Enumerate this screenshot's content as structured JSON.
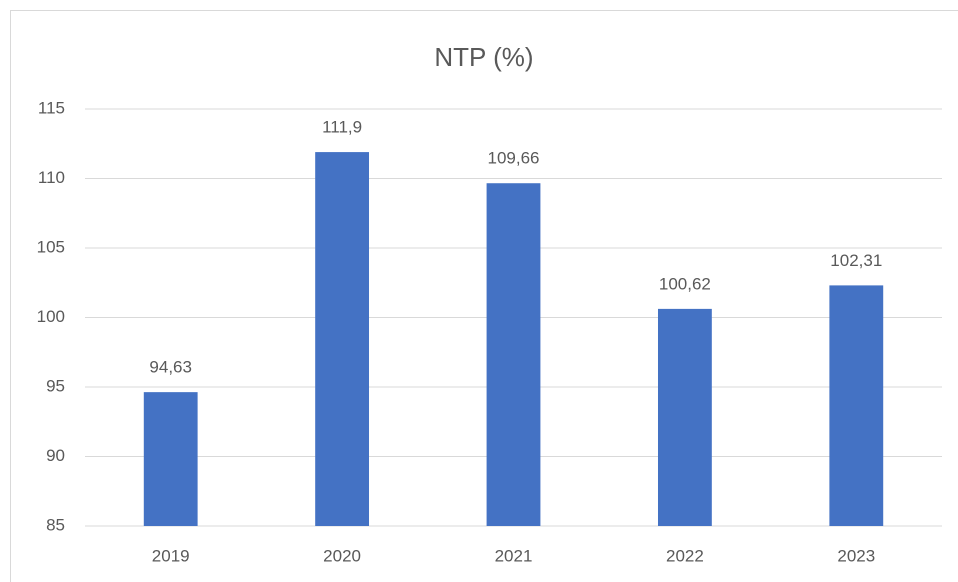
{
  "chart_data": {
    "type": "bar",
    "title": "NTP (%)",
    "categories": [
      "2019",
      "2020",
      "2021",
      "2022",
      "2023"
    ],
    "values": [
      94.63,
      111.9,
      109.66,
      100.62,
      102.31
    ],
    "value_labels": [
      "94,63",
      "111,9",
      "109,66",
      "100,62",
      "102,31"
    ],
    "color": "#4472c4",
    "ylim": [
      85,
      115
    ],
    "yticks": [
      85,
      90,
      95,
      100,
      105,
      110,
      115
    ],
    "grid": true
  }
}
